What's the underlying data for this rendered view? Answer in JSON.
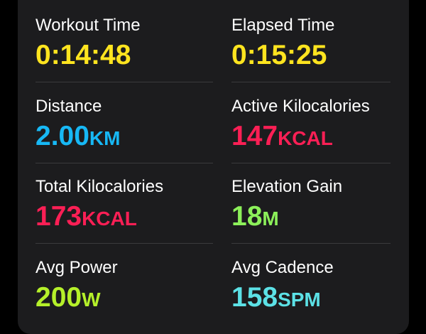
{
  "metrics": [
    {
      "label": "Workout Time",
      "value": "0:14:48"
    },
    {
      "label": "Elapsed Time",
      "value": "0:15:25"
    },
    {
      "label": "Distance",
      "value": "2.00",
      "unit": "KM"
    },
    {
      "label": "Active Kilocalories",
      "value": "147",
      "unit": "KCAL"
    },
    {
      "label": "Total Kilocalories",
      "value": "173",
      "unit": "KCAL"
    },
    {
      "label": "Elevation Gain",
      "value": "18",
      "unit": "M"
    },
    {
      "label": "Avg Power",
      "value": "200",
      "unit": "W"
    },
    {
      "label": "Avg Cadence",
      "value": "158",
      "unit": "SPM"
    }
  ]
}
